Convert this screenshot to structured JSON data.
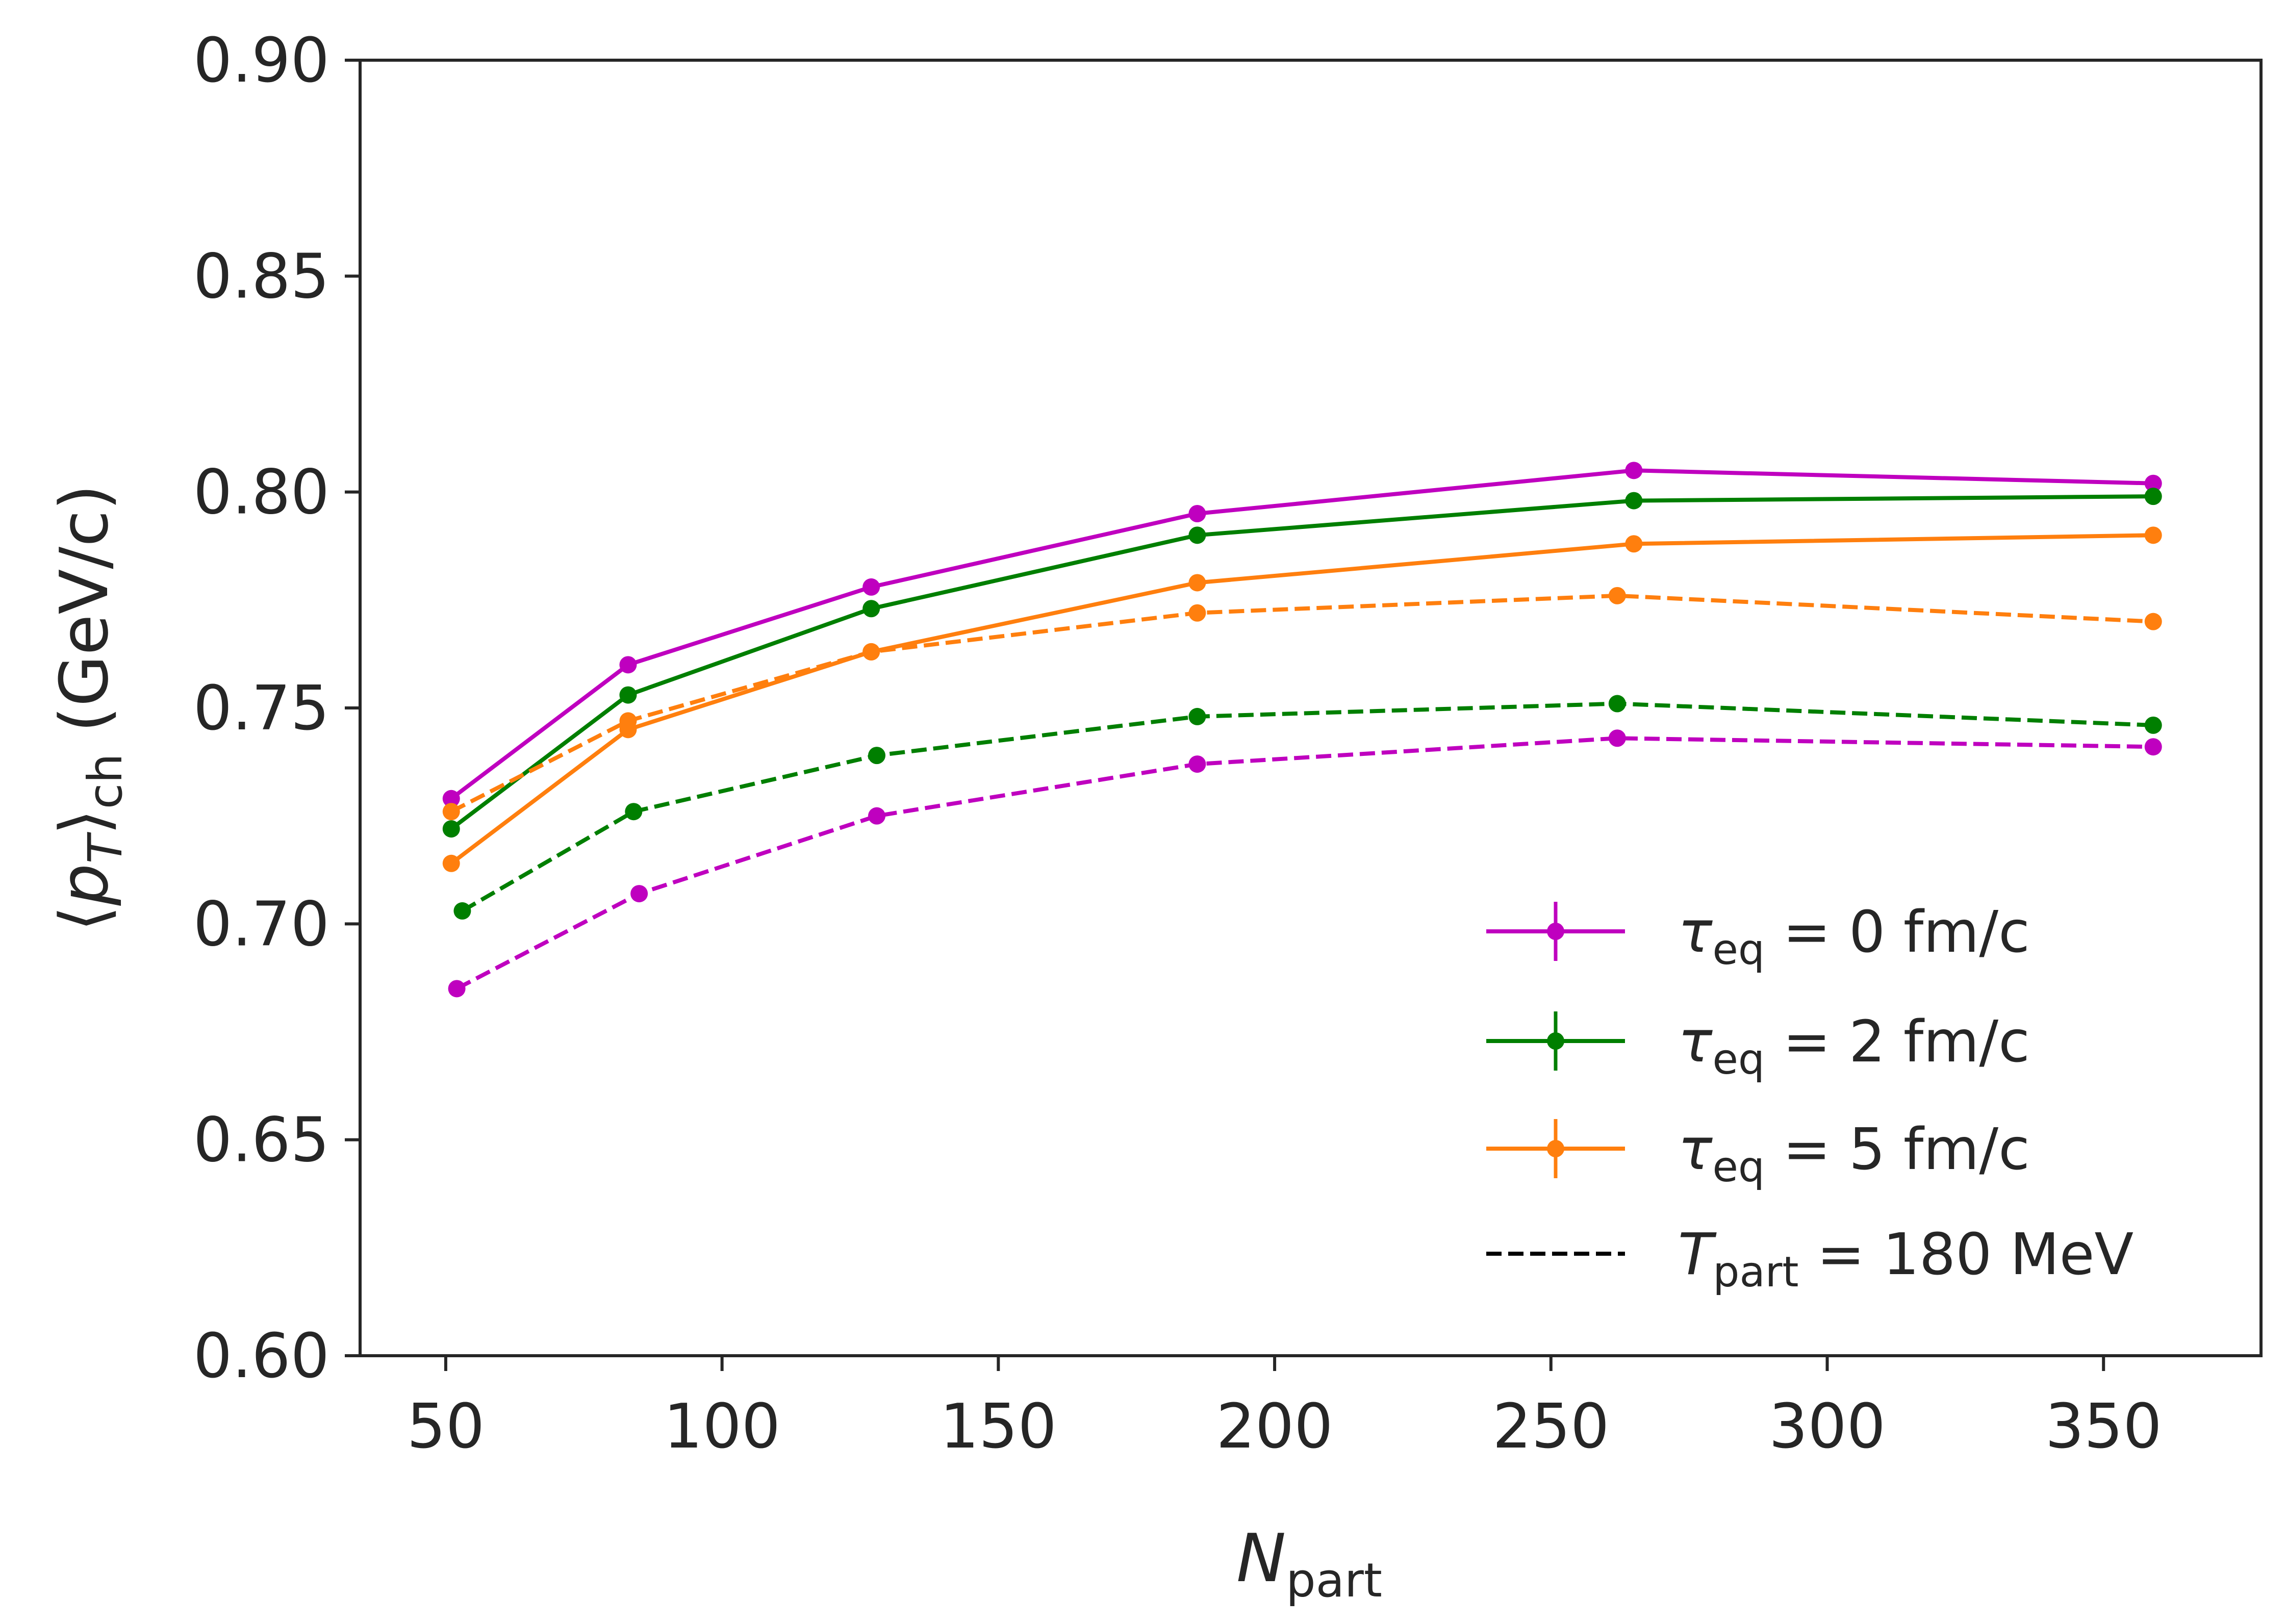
{
  "chart_data": {
    "type": "line",
    "title": "",
    "xlabel": {
      "main": "N",
      "sub": "part"
    },
    "ylabel": {
      "open": "⟨",
      "p": "p",
      "p_sub": "T",
      "close": "⟩",
      "sub": "ch",
      "units": " (GeV/c)"
    },
    "xlim": [
      34.5,
      378.5
    ],
    "ylim": [
      0.6,
      0.9
    ],
    "x_ticks": [
      50,
      100,
      150,
      200,
      250,
      300,
      350
    ],
    "x_tick_labels": [
      "50",
      "100",
      "150",
      "200",
      "250",
      "300",
      "350"
    ],
    "y_ticks": [
      0.6,
      0.65,
      0.7,
      0.75,
      0.8,
      0.85,
      0.9
    ],
    "y_tick_labels": [
      "0.60",
      "0.65",
      "0.70",
      "0.75",
      "0.80",
      "0.85",
      "0.90"
    ],
    "legend_position": "lower-right",
    "legend": [
      {
        "symbol": "τ",
        "sub": "eq",
        "text": " = 0 fm/c",
        "color": "#bf00bf",
        "style": "solid"
      },
      {
        "symbol": "τ",
        "sub": "eq",
        "text": " = 2 fm/c",
        "color": "#007f00",
        "style": "solid"
      },
      {
        "symbol": "τ",
        "sub": "eq",
        "text": " = 5 fm/c",
        "color": "#ff7f0e",
        "style": "solid"
      },
      {
        "symbol": "T",
        "sub": "part",
        "text": " = 180 MeV",
        "color": "#000000",
        "style": "dashed"
      }
    ],
    "series": [
      {
        "name": "τeq = 0 fm/c",
        "color": "#bf00bf",
        "style": "solid",
        "x": [
          51,
          83,
          127,
          186,
          265,
          359
        ],
        "values": [
          0.729,
          0.76,
          0.778,
          0.795,
          0.805,
          0.802
        ]
      },
      {
        "name": "τeq = 2 fm/c",
        "color": "#007f00",
        "style": "solid",
        "x": [
          51,
          83,
          127,
          186,
          265,
          359
        ],
        "values": [
          0.722,
          0.753,
          0.773,
          0.79,
          0.798,
          0.799
        ]
      },
      {
        "name": "τeq = 5 fm/c",
        "color": "#ff7f0e",
        "style": "solid",
        "x": [
          51,
          83,
          127,
          186,
          265,
          359
        ],
        "values": [
          0.714,
          0.745,
          0.763,
          0.779,
          0.788,
          0.79
        ]
      },
      {
        "name": "τeq = 5 fm/c, Tpart = 180 MeV",
        "color": "#ff7f0e",
        "style": "dashed",
        "x": [
          51,
          83,
          127,
          186,
          262,
          359
        ],
        "values": [
          0.726,
          0.747,
          0.763,
          0.772,
          0.776,
          0.77
        ]
      },
      {
        "name": "τeq = 2 fm/c, Tpart = 180 MeV",
        "color": "#007f00",
        "style": "dashed",
        "x": [
          53,
          84,
          128,
          186,
          262,
          359
        ],
        "values": [
          0.703,
          0.726,
          0.739,
          0.748,
          0.751,
          0.746
        ]
      },
      {
        "name": "τeq = 0 fm/c, Tpart = 180 MeV",
        "color": "#bf00bf",
        "style": "dashed",
        "x": [
          52,
          85,
          128,
          186,
          262,
          359
        ],
        "values": [
          0.685,
          0.707,
          0.725,
          0.737,
          0.743,
          0.741
        ]
      }
    ]
  }
}
